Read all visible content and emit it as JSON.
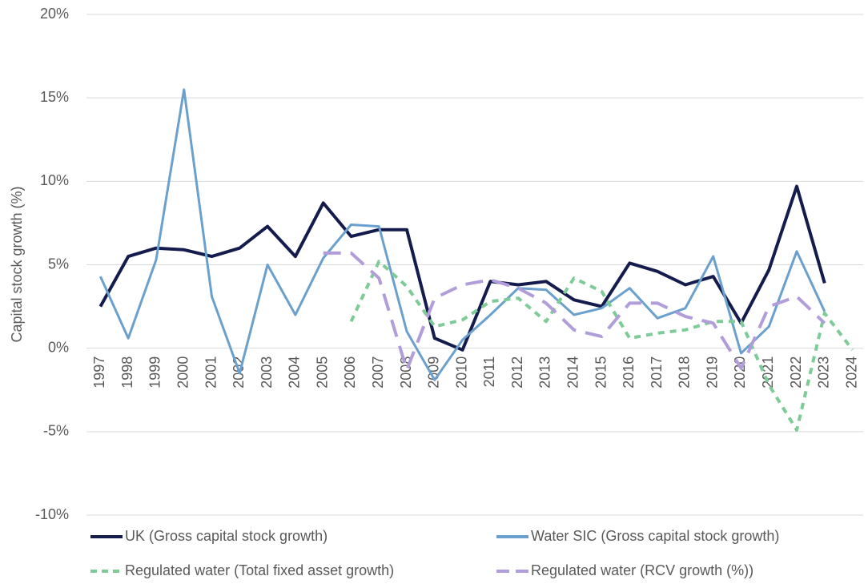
{
  "chart_data": {
    "type": "line",
    "y_axis_label": "Capital stock growth (%)",
    "categories": [
      "1997",
      "1998",
      "1999",
      "2000",
      "2001",
      "2002",
      "2003",
      "2004",
      "2005",
      "2006",
      "2007",
      "2008",
      "2009",
      "2010",
      "2011",
      "2012",
      "2013",
      "2014",
      "2015",
      "2016",
      "2017",
      "2018",
      "2019",
      "2020",
      "2021",
      "2022",
      "2023",
      "2024"
    ],
    "ylim": [
      -10,
      20
    ],
    "yticks": [
      {
        "value": -10,
        "label": "-10%"
      },
      {
        "value": -5,
        "label": "-5%"
      },
      {
        "value": 0,
        "label": "0%"
      },
      {
        "value": 5,
        "label": "5%"
      },
      {
        "value": 10,
        "label": "10%"
      },
      {
        "value": 15,
        "label": "15%"
      },
      {
        "value": 20,
        "label": "20%"
      }
    ],
    "grid": true,
    "legend": "bottom",
    "series": [
      {
        "name": "UK (Gross capital stock growth)",
        "color": "#141b4d",
        "style": "solid",
        "values": [
          2.5,
          5.5,
          6.0,
          5.9,
          5.5,
          6.0,
          7.3,
          5.5,
          8.7,
          6.7,
          7.1,
          7.1,
          0.6,
          -0.1,
          4.0,
          3.8,
          4.0,
          2.9,
          2.5,
          5.1,
          4.6,
          3.8,
          4.3,
          1.5,
          4.7,
          9.7,
          3.9,
          null
        ]
      },
      {
        "name": "Water SIC (Gross capital stock growth)",
        "color": "#6aa0cd",
        "style": "solid",
        "values": [
          4.3,
          0.6,
          5.3,
          15.5,
          3.1,
          -1.5,
          5.0,
          2.0,
          5.4,
          7.4,
          7.3,
          1.0,
          -1.9,
          0.5,
          2.0,
          3.6,
          3.5,
          2.0,
          2.4,
          3.6,
          1.8,
          2.4,
          5.5,
          -0.3,
          1.3,
          5.8,
          2.2,
          null
        ]
      },
      {
        "name": "Regulated water (Total fixed asset growth)",
        "color": "#7dcb97",
        "style": "dotted",
        "values": [
          null,
          null,
          null,
          null,
          null,
          null,
          null,
          null,
          null,
          1.6,
          5.2,
          3.7,
          1.3,
          1.7,
          2.8,
          3.0,
          1.6,
          4.2,
          3.4,
          0.6,
          0.9,
          1.1,
          1.6,
          1.6,
          -2.2,
          -4.9,
          2.1,
          -0.1
        ]
      },
      {
        "name": "Regulated water (RCV growth (%))",
        "color": "#b29ddb",
        "style": "dashed",
        "values": [
          null,
          null,
          null,
          null,
          null,
          null,
          null,
          null,
          5.7,
          5.7,
          4.2,
          -1.3,
          3.0,
          3.8,
          4.1,
          3.6,
          2.7,
          1.1,
          0.7,
          2.7,
          2.7,
          1.9,
          1.5,
          -1.2,
          2.5,
          3.1,
          1.5,
          null
        ]
      }
    ]
  }
}
